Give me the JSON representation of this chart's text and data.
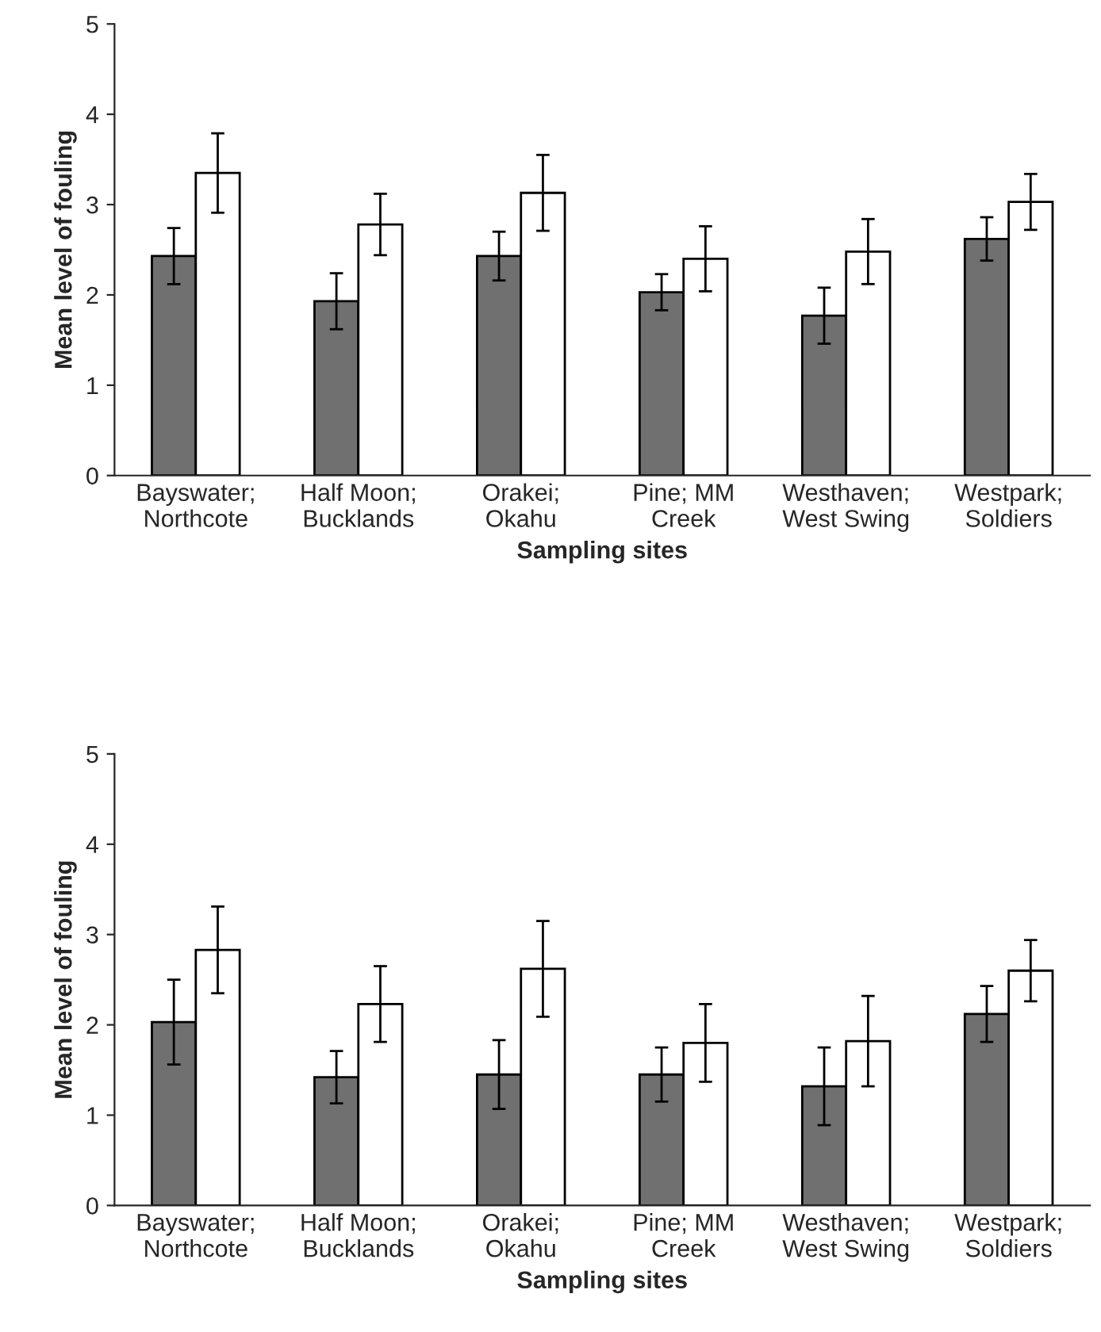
{
  "chart_data": [
    {
      "type": "bar",
      "xlabel": "Sampling sites",
      "ylabel": "Mean level of fouling",
      "categories": [
        "Bayswater;\nNorthcote",
        "Half Moon;\nBucklands",
        "Orakei;\nOkahu",
        "Pine; MM\nCreek",
        "Westhaven;\nWest Swing",
        "Westpark;\nSoldiers"
      ],
      "series": [
        {
          "color": "#707070",
          "values": [
            2.43,
            1.93,
            2.43,
            2.03,
            1.77,
            2.62
          ],
          "errors": [
            0.31,
            0.31,
            0.27,
            0.2,
            0.31,
            0.24
          ]
        },
        {
          "color": "#ffffff",
          "values": [
            3.35,
            2.78,
            3.13,
            2.4,
            2.48,
            3.03
          ],
          "errors": [
            0.44,
            0.34,
            0.42,
            0.36,
            0.36,
            0.31
          ]
        }
      ],
      "ylim": [
        0,
        5
      ],
      "yticks": [
        0,
        1,
        2,
        3,
        4,
        5
      ],
      "grid": false,
      "legend": false
    },
    {
      "type": "bar",
      "xlabel": "Sampling sites",
      "ylabel": "Mean level of fouling",
      "categories": [
        "Bayswater;\nNorthcote",
        "Half Moon;\nBucklands",
        "Orakei;\nOkahu",
        "Pine; MM\nCreek",
        "Westhaven;\nWest Swing",
        "Westpark;\nSoldiers"
      ],
      "series": [
        {
          "color": "#707070",
          "values": [
            2.03,
            1.42,
            1.45,
            1.45,
            1.32,
            2.12
          ],
          "errors": [
            0.47,
            0.29,
            0.38,
            0.3,
            0.43,
            0.31
          ]
        },
        {
          "color": "#ffffff",
          "values": [
            2.83,
            2.23,
            2.62,
            1.8,
            1.82,
            2.6
          ],
          "errors": [
            0.48,
            0.42,
            0.53,
            0.43,
            0.5,
            0.34
          ]
        }
      ],
      "ylim": [
        0,
        5
      ],
      "yticks": [
        0,
        1,
        2,
        3,
        4,
        5
      ],
      "grid": false,
      "legend": false
    }
  ]
}
